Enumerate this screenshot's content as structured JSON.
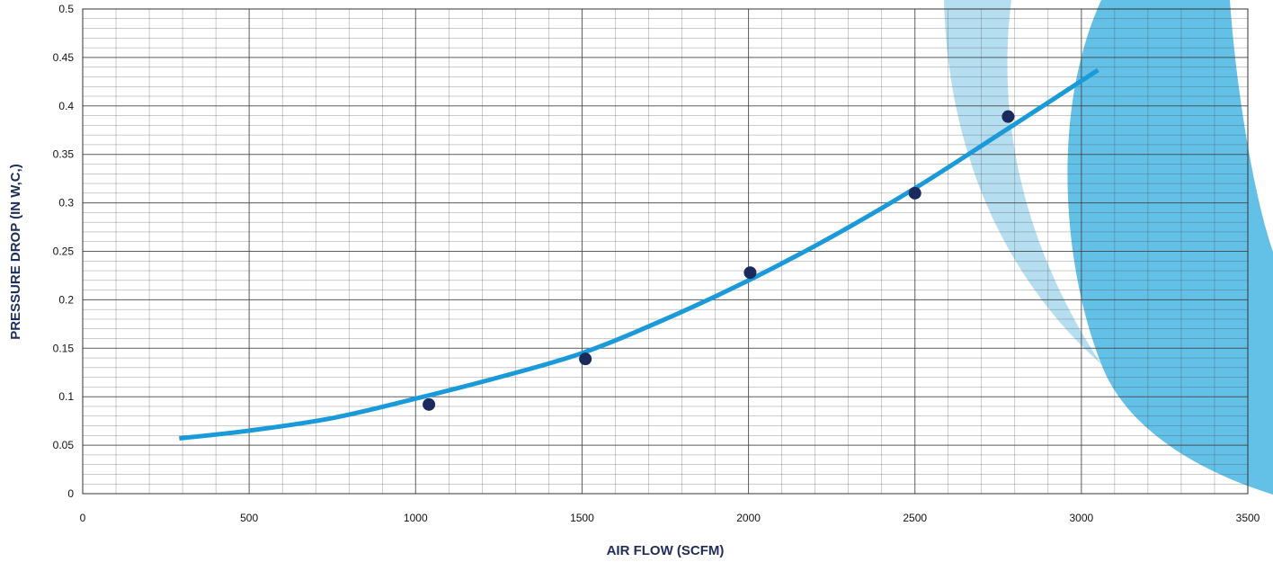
{
  "chart_data": {
    "type": "scatter",
    "xlabel": "AIR FLOW (SCFM)",
    "ylabel": "PRESSURE DROP (IN W,C,)",
    "xlim": [
      0,
      3500
    ],
    "ylim": [
      0,
      0.5
    ],
    "x_ticks": [
      "0",
      "500",
      "1000",
      "1500",
      "2000",
      "2500",
      "3000",
      "3500"
    ],
    "y_ticks": [
      "0",
      "0.05",
      "0.1",
      "0.15",
      "0.2",
      "0.25",
      "0.3",
      "0.35",
      "0.4",
      "0.45",
      "0.5"
    ],
    "grid": true,
    "series": [
      {
        "kind": "points",
        "points": [
          {
            "x": 1040,
            "y": 0.092
          },
          {
            "x": 1510,
            "y": 0.139
          },
          {
            "x": 2005,
            "y": 0.228
          },
          {
            "x": 2500,
            "y": 0.31
          },
          {
            "x": 2780,
            "y": 0.389
          }
        ]
      },
      {
        "kind": "fit-curve",
        "points": [
          {
            "x": 290,
            "y": 0.057
          },
          {
            "x": 500,
            "y": 0.065
          },
          {
            "x": 750,
            "y": 0.078
          },
          {
            "x": 1000,
            "y": 0.098
          },
          {
            "x": 1250,
            "y": 0.12
          },
          {
            "x": 1500,
            "y": 0.145
          },
          {
            "x": 1750,
            "y": 0.18
          },
          {
            "x": 2000,
            "y": 0.22
          },
          {
            "x": 2250,
            "y": 0.265
          },
          {
            "x": 2500,
            "y": 0.315
          },
          {
            "x": 2750,
            "y": 0.37
          },
          {
            "x": 3050,
            "y": 0.437
          }
        ]
      }
    ]
  },
  "colors": {
    "curve": "#1a9ad8",
    "points": "#1b2a5c",
    "grid": "#444444",
    "axis_title": "#1e2d5a",
    "decor_light": "#a9d8ee",
    "decor_dark": "#5bbde6"
  }
}
